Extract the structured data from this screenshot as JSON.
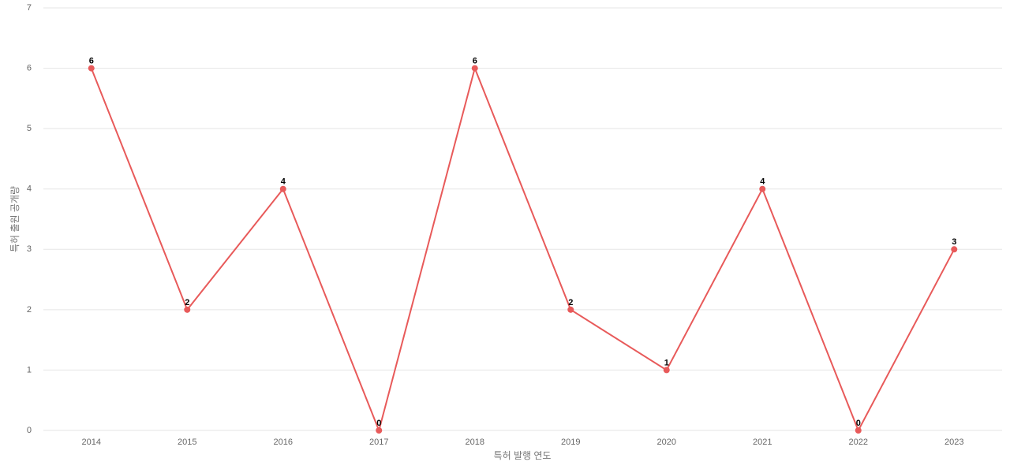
{
  "chart_data": {
    "type": "line",
    "x_label": "특허 발행 연도",
    "y_label": "특허 출원 공개량",
    "categories": [
      "2014",
      "2015",
      "2016",
      "2017",
      "2018",
      "2019",
      "2020",
      "2021",
      "2022",
      "2023"
    ],
    "values": [
      6,
      2,
      4,
      0,
      6,
      2,
      1,
      4,
      0,
      3
    ],
    "color": "#e85a5a",
    "ylim": [
      0,
      7
    ],
    "yticks": [
      0,
      1,
      2,
      3,
      4,
      5,
      6,
      7
    ],
    "grid": true,
    "data_labels": true
  }
}
